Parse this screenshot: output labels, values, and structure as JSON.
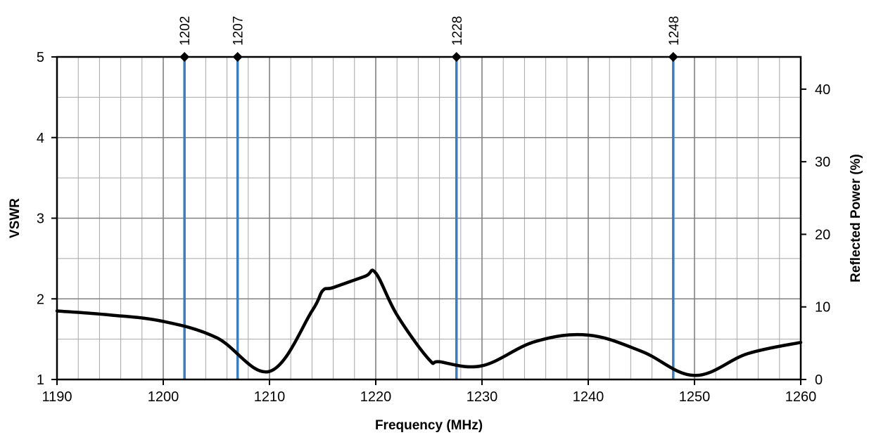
{
  "chart_data": {
    "type": "line",
    "title": "",
    "xlabel": "Frequency (MHz)",
    "ylabel": "VSWR",
    "y2label": "Reflected Power (%)",
    "xlim": [
      1190,
      1260
    ],
    "ylim": [
      1,
      5
    ],
    "y2lim": [
      0,
      44.44
    ],
    "x_ticks": [
      1190,
      1200,
      1210,
      1220,
      1230,
      1240,
      1250,
      1260
    ],
    "y_ticks": [
      1,
      2,
      3,
      4,
      5
    ],
    "y2_ticks": [
      0,
      10,
      20,
      30,
      40
    ],
    "grid": true,
    "legend": "none",
    "series": [
      {
        "color": "#000000",
        "x": [
          1190,
          1195,
          1200,
          1205,
          1210,
          1214,
          1215,
          1216,
          1219,
          1220,
          1222,
          1225,
          1226,
          1230,
          1235,
          1240,
          1245,
          1250,
          1255,
          1260
        ],
        "values": [
          1.85,
          1.8,
          1.72,
          1.52,
          1.1,
          1.85,
          2.1,
          2.14,
          2.28,
          2.32,
          1.8,
          1.25,
          1.22,
          1.17,
          1.47,
          1.55,
          1.35,
          1.05,
          1.32,
          1.46
        ]
      }
    ],
    "markers": {
      "color": "#3c7ebc",
      "items": [
        {
          "x": 1202,
          "label": "1202"
        },
        {
          "x": 1207,
          "label": "1207"
        },
        {
          "x": 1227.6,
          "label": "1228"
        },
        {
          "x": 1248,
          "label": "1248"
        }
      ]
    }
  }
}
